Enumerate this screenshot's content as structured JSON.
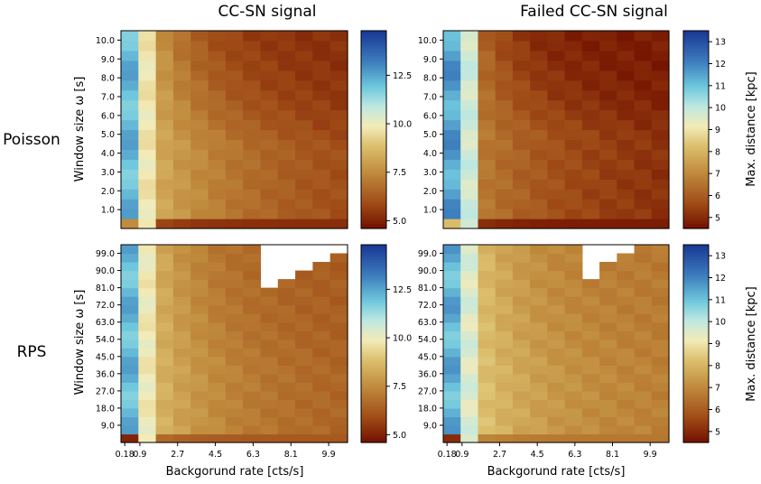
{
  "chart_data": {
    "type": "heatmap",
    "column_titles": [
      "CC-SN signal",
      "Failed CC-SN signal"
    ],
    "row_labels": [
      "Poisson",
      "RPS"
    ],
    "xlabel": "Backgorund rate [cts/s]",
    "x_tick_labels": [
      "0.18",
      "0.9",
      "2.7",
      "4.5",
      "6.3",
      "8.1",
      "9.9"
    ],
    "x_tick_values": [
      0.18,
      0.9,
      2.7,
      4.5,
      6.3,
      8.1,
      9.9
    ],
    "x_range": [
      0.0,
      10.8
    ],
    "colorbar_label": "Max. distance [kpc]",
    "panels": [
      {
        "name": "poisson-cc-sn",
        "row": 0,
        "col": 0,
        "ylabel": "Window size ω [s]",
        "y_tick_labels": [
          "1.0",
          "2.0",
          "3.0",
          "4.0",
          "5.0",
          "6.0",
          "7.0",
          "8.0",
          "9.0",
          "10.0"
        ],
        "y_tick_values": [
          1,
          2,
          3,
          4,
          5,
          6,
          7,
          8,
          9,
          10
        ],
        "y_range": [
          0.0,
          10.5
        ],
        "cbar_ticks": [
          5.0,
          7.5,
          10.0,
          12.5
        ],
        "cbar_tick_labels": [
          "5.0",
          "7.5",
          "10.0",
          "12.5"
        ],
        "cbar_range": [
          4.6,
          14.8
        ],
        "grid": {
          "nx": 13,
          "ny": 20,
          "corner": 7.5,
          "rightEdge": 5.2,
          "near": 12.2,
          "mid": 9.8,
          "far": 8.6,
          "decay": 2.6,
          "wPow": 1.2,
          "minW": 0.35,
          "cut": 999
        }
      },
      {
        "name": "poisson-failed-cc-sn",
        "row": 0,
        "col": 1,
        "ylabel": "",
        "y_tick_labels": [
          "1.0",
          "2.0",
          "3.0",
          "4.0",
          "5.0",
          "6.0",
          "7.0",
          "8.0",
          "9.0",
          "10.0"
        ],
        "y_tick_values": [
          1,
          2,
          3,
          4,
          5,
          6,
          7,
          8,
          9,
          10
        ],
        "y_range": [
          0.0,
          10.5
        ],
        "cbar_ticks": [
          5,
          6,
          7,
          8,
          9,
          10,
          11,
          12,
          13
        ],
        "cbar_tick_labels": [
          "5",
          "6",
          "7",
          "8",
          "9",
          "10",
          "11",
          "12",
          "13"
        ],
        "cbar_range": [
          4.5,
          13.5
        ],
        "grid": {
          "nx": 13,
          "ny": 20,
          "corner": 8.2,
          "rightEdge": 4.7,
          "near": 11.6,
          "mid": 9.8,
          "far": 6.9,
          "decay": 2.0,
          "wPow": 1.6,
          "minW": 0.3,
          "cut": 999
        }
      },
      {
        "name": "rps-cc-sn",
        "row": 1,
        "col": 0,
        "ylabel": "Window size ω [s]",
        "y_tick_labels": [
          "9.0",
          "18.0",
          "27.0",
          "36.0",
          "45.0",
          "54.0",
          "63.0",
          "72.0",
          "81.0",
          "90.0",
          "99.0"
        ],
        "y_tick_values": [
          9,
          18,
          27,
          36,
          45,
          54,
          63,
          72,
          81,
          90,
          99
        ],
        "y_range": [
          0.0,
          103.5
        ],
        "cbar_ticks": [
          5.0,
          7.5,
          10.0,
          12.5
        ],
        "cbar_tick_labels": [
          "5.0",
          "7.5",
          "10.0",
          "12.5"
        ],
        "cbar_range": [
          4.6,
          14.8
        ],
        "grid": {
          "nx": 13,
          "ny": 23,
          "corner": 5.0,
          "rightEdge": 6.2,
          "near": 12.2,
          "mid": 9.9,
          "far": 8.9,
          "decay": 3.2,
          "wPow": 0.5,
          "minW": 0.6,
          "cut": [
            18,
            19,
            20,
            21,
            22
          ]
        }
      },
      {
        "name": "rps-failed-cc-sn",
        "row": 1,
        "col": 1,
        "ylabel": "",
        "y_tick_labels": [
          "9.0",
          "18.0",
          "27.0",
          "36.0",
          "45.0",
          "54.0",
          "63.0",
          "72.0",
          "81.0",
          "90.0",
          "99.0"
        ],
        "y_tick_values": [
          9,
          18,
          27,
          36,
          45,
          54,
          63,
          72,
          81,
          90,
          99
        ],
        "y_range": [
          0.0,
          103.5
        ],
        "cbar_ticks": [
          5,
          6,
          7,
          8,
          9,
          10,
          11,
          12,
          13
        ],
        "cbar_tick_labels": [
          "5",
          "6",
          "7",
          "8",
          "9",
          "10",
          "11",
          "12",
          "13"
        ],
        "cbar_range": [
          4.5,
          13.5
        ],
        "grid": {
          "nx": 13,
          "ny": 23,
          "corner": 5.0,
          "rightEdge": 6.6,
          "near": 11.3,
          "mid": 9.6,
          "far": 8.6,
          "decay": 3.0,
          "wPow": 0.5,
          "minW": 0.6,
          "cut": [
            19,
            21,
            22,
            23,
            23
          ]
        }
      }
    ],
    "colormap": [
      {
        "t": 0.0,
        "color": "#731200"
      },
      {
        "t": 0.12,
        "color": "#9f4a16"
      },
      {
        "t": 0.28,
        "color": "#c08a3c"
      },
      {
        "t": 0.42,
        "color": "#dcc06e"
      },
      {
        "t": 0.52,
        "color": "#f3ebb8"
      },
      {
        "t": 0.62,
        "color": "#bfe8e1"
      },
      {
        "t": 0.72,
        "color": "#6fc8dd"
      },
      {
        "t": 0.85,
        "color": "#3d7dbd"
      },
      {
        "t": 1.0,
        "color": "#1a3a96"
      }
    ]
  }
}
